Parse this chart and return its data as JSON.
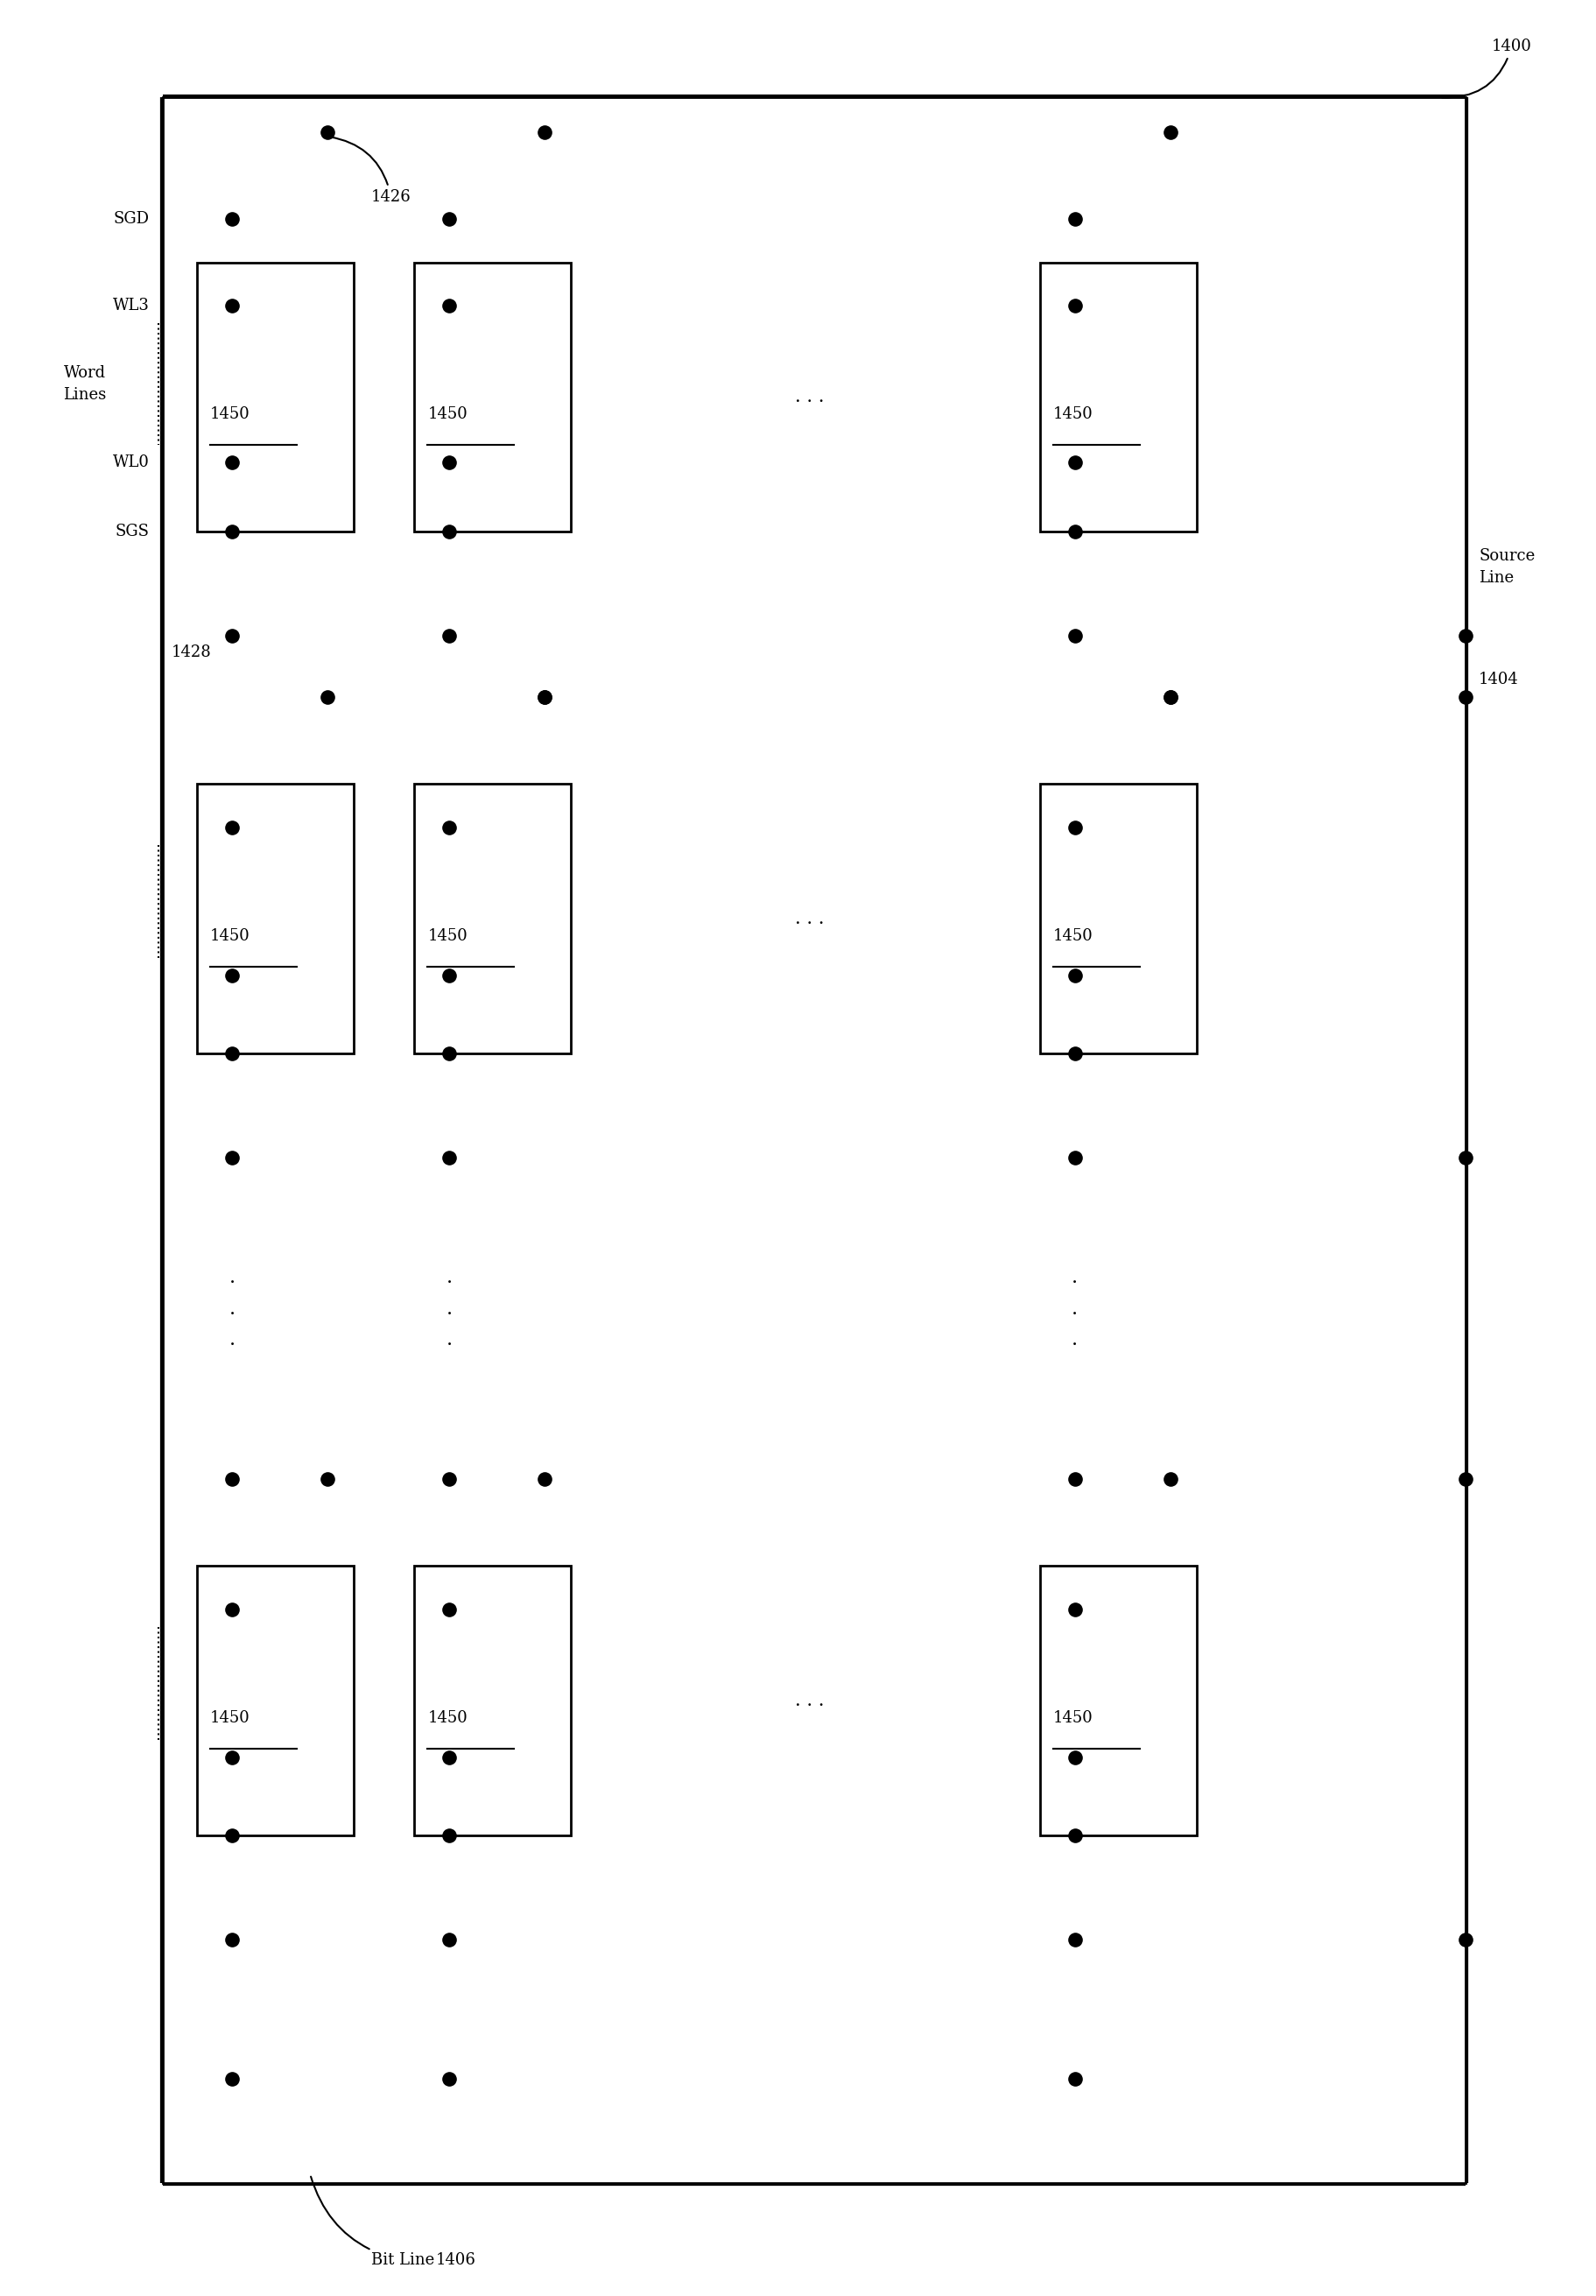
{
  "fig_width": 18.24,
  "fig_height": 26.22,
  "bg_color": "#ffffff",
  "line_color": "#000000",
  "lw": 2.0,
  "lw_thick": 4.5,
  "dot_size": 120,
  "label_1400": "1400",
  "label_1404": "1404",
  "label_1406": "1406",
  "label_1426": "1426",
  "label_1428": "1428",
  "label_1450": "1450",
  "label_sgd": "SGD",
  "label_wl3": "WL3",
  "label_word_lines": "Word\nLines",
  "label_wl0": "WL0",
  "label_sgs": "SGS",
  "label_source_line": "Source\nLine",
  "label_bit_line": "Bit Line",
  "font_size": 13
}
